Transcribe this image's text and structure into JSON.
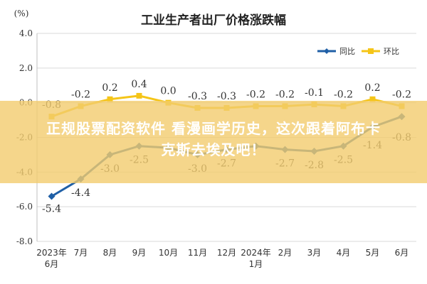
{
  "chart_data": {
    "type": "line",
    "title": "工业生产者出厂价格涨跌幅",
    "unit": "(%)",
    "categories": [
      "2023年6月",
      "7月",
      "8月",
      "9月",
      "10月",
      "11月",
      "12月",
      "2024年1月",
      "2月",
      "3月",
      "4月",
      "5月",
      "6月"
    ],
    "category_lines": [
      [
        "2023年",
        "6月"
      ],
      [
        "7月"
      ],
      [
        "8月"
      ],
      [
        "9月"
      ],
      [
        "10月"
      ],
      [
        "11月"
      ],
      [
        "12月"
      ],
      [
        "2024年",
        "1月"
      ],
      [
        "2月"
      ],
      [
        "3月"
      ],
      [
        "4月"
      ],
      [
        "5月"
      ],
      [
        "6月"
      ]
    ],
    "yticks": [
      "4.0",
      "2.0",
      "0.0",
      "-2.0",
      "-4.0",
      "-6.0",
      "-8.0"
    ],
    "ylim": [
      -8,
      4
    ],
    "series": [
      {
        "name": "同比",
        "color": "#1f5fa6",
        "values": [
          -5.4,
          -4.4,
          -3.0,
          -2.5,
          -2.6,
          -3.0,
          -2.7,
          -2.5,
          -2.7,
          -2.8,
          -2.5,
          -1.4,
          -0.8
        ],
        "labels": [
          "-5.4",
          "-4.4",
          "-3.0",
          "-2.5",
          "",
          "-3.0",
          "-2.7",
          "",
          "-2.7",
          "-2.8",
          "-2.5",
          "-1.4",
          "-0.8"
        ]
      },
      {
        "name": "环比",
        "color": "#f5c518",
        "values": [
          -0.8,
          -0.2,
          0.2,
          0.4,
          0.0,
          -0.3,
          -0.3,
          -0.2,
          -0.2,
          -0.1,
          -0.2,
          0.2,
          -0.2
        ],
        "labels": [
          "-0.8",
          "-0.2",
          "0.2",
          "0.4",
          "0.0",
          "-0.3",
          "-0.3",
          "-0.2",
          "-0.2",
          "-0.1",
          "-0.2",
          "0.2",
          "-0.2"
        ]
      }
    ],
    "legend_position": "top-right",
    "grid": true
  },
  "overlay": {
    "line1": "正规股票配资软件 看漫画学历史，这次跟着阿布卡",
    "line2": "克斯去埃及吧！"
  }
}
